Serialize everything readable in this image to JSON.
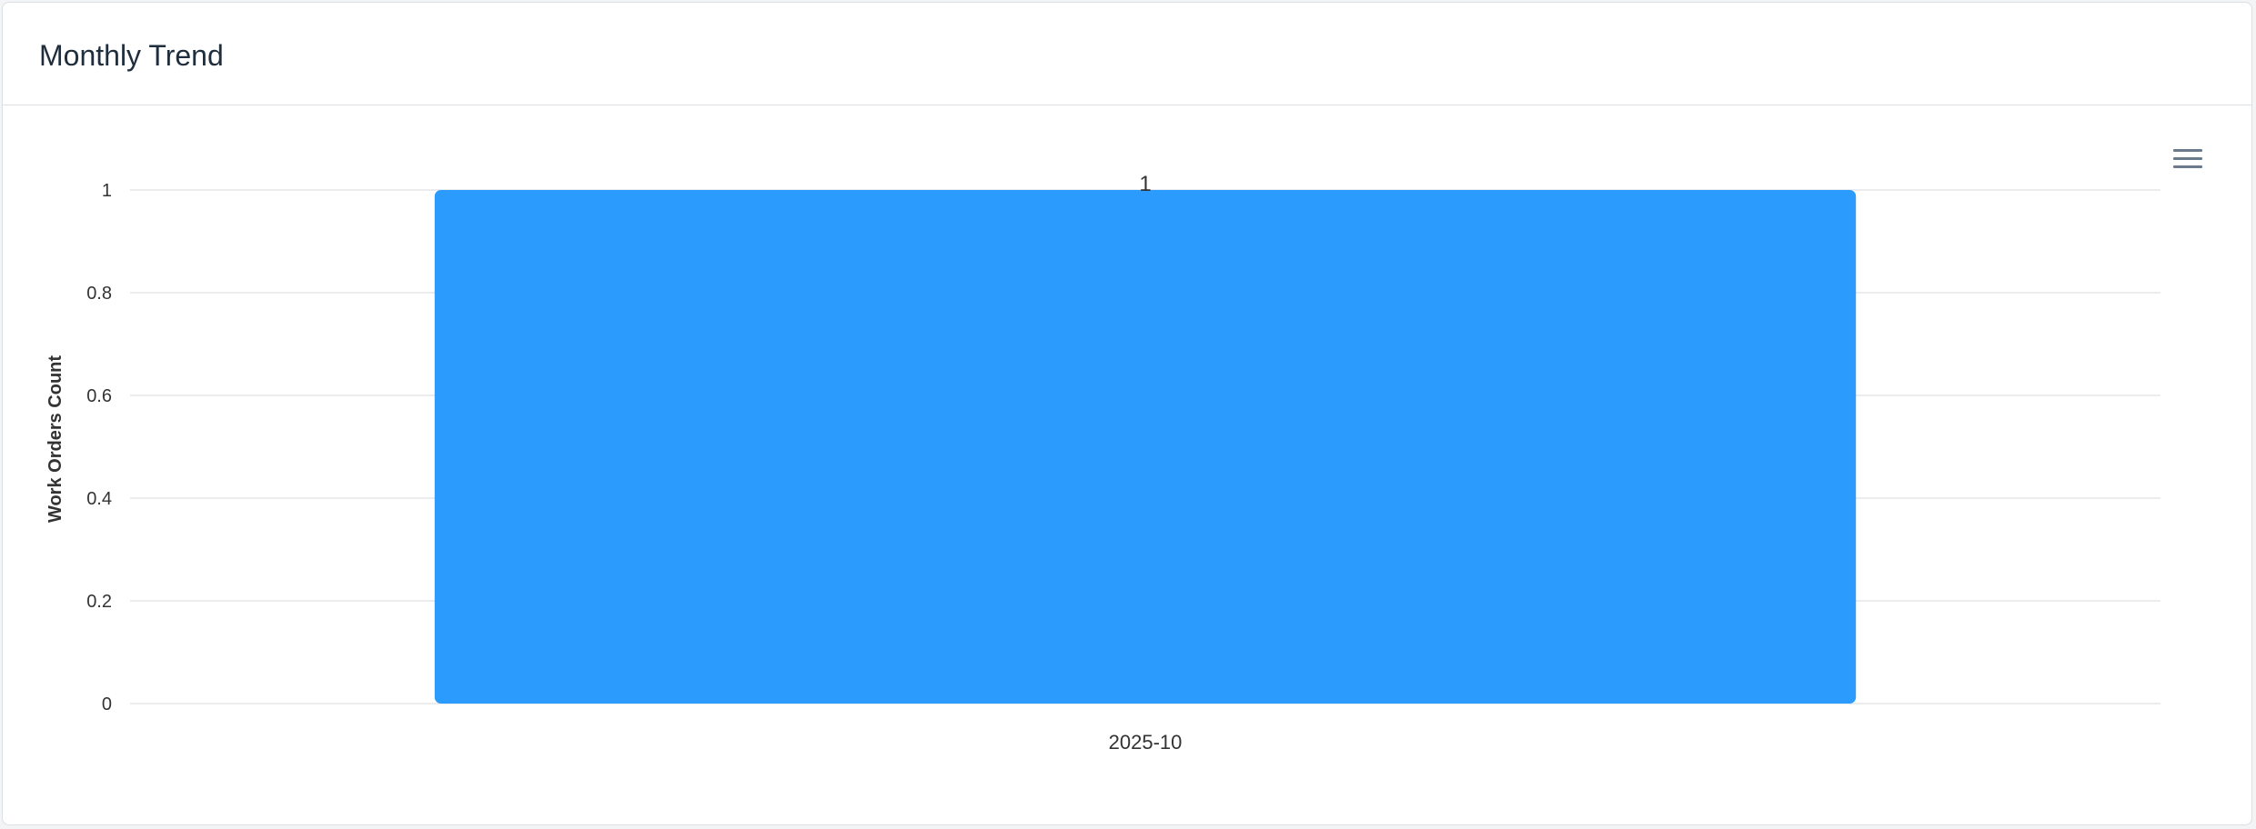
{
  "card": {
    "title": "Monthly Trend"
  },
  "chart_menu": {
    "icon": "hamburger-menu-icon"
  },
  "colors": {
    "bar": "#2b9cfd",
    "grid": "#e3e5e8",
    "axis_text": "#333333",
    "title_text": "#1f2d3d"
  },
  "chart_data": {
    "type": "bar",
    "categories": [
      "2025-10"
    ],
    "values": [
      1
    ],
    "data_labels": [
      "1"
    ],
    "xlabel": "",
    "ylabel": "Work Orders Count",
    "ylim": [
      0,
      1
    ],
    "y_ticks": [
      "0",
      "0.2",
      "0.4",
      "0.6",
      "0.8",
      "1"
    ],
    "y_tick_values": [
      0,
      0.2,
      0.4,
      0.6,
      0.8,
      1
    ],
    "grid": true,
    "legend": "none"
  }
}
